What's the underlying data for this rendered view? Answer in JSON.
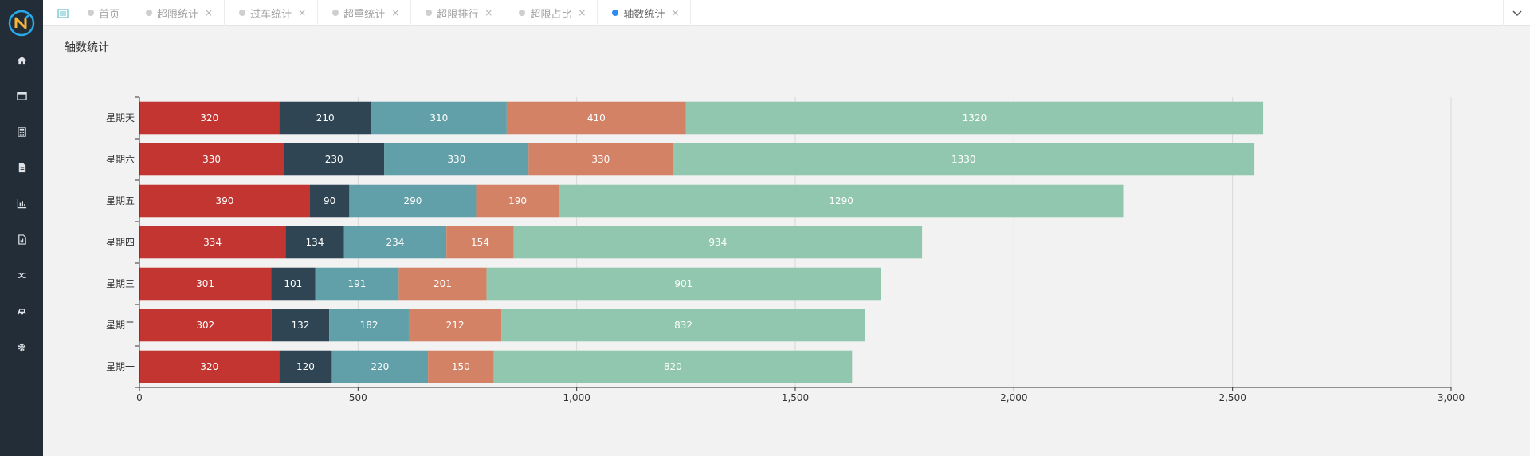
{
  "app": {
    "logo": "N"
  },
  "sidebar": {
    "items": [
      {
        "icon": "home-icon"
      },
      {
        "icon": "window-icon"
      },
      {
        "icon": "calculator-icon"
      },
      {
        "icon": "document-icon"
      },
      {
        "icon": "bar-chart-icon"
      },
      {
        "icon": "file-chart-icon"
      },
      {
        "icon": "shuffle-icon"
      },
      {
        "icon": "car-icon"
      },
      {
        "icon": "gear-icon"
      }
    ]
  },
  "tabs": [
    {
      "label": "首页",
      "closable": false,
      "active": false
    },
    {
      "label": "超限统计",
      "closable": true,
      "active": false
    },
    {
      "label": "过车统计",
      "closable": true,
      "active": false
    },
    {
      "label": "超重统计",
      "closable": true,
      "active": false
    },
    {
      "label": "超限排行",
      "closable": true,
      "active": false
    },
    {
      "label": "超限占比",
      "closable": true,
      "active": false
    },
    {
      "label": "轴数统计",
      "closable": true,
      "active": true
    }
  ],
  "page": {
    "title": "轴数统计"
  },
  "colors": {
    "accent": "#2d8cf0",
    "series": [
      "#c23531",
      "#2f4554",
      "#61a0a8",
      "#d48265",
      "#91c7ae"
    ]
  },
  "chart_data": {
    "type": "bar",
    "orientation": "horizontal",
    "stacked": true,
    "categories": [
      "星期一",
      "星期二",
      "星期三",
      "星期四",
      "星期五",
      "星期六",
      "星期天"
    ],
    "series": [
      {
        "values": [
          320,
          302,
          301,
          334,
          390,
          330,
          320
        ]
      },
      {
        "values": [
          120,
          132,
          101,
          134,
          90,
          230,
          210
        ]
      },
      {
        "values": [
          220,
          182,
          191,
          234,
          290,
          330,
          310
        ]
      },
      {
        "values": [
          150,
          212,
          201,
          154,
          190,
          330,
          410
        ]
      },
      {
        "values": [
          820,
          832,
          901,
          934,
          1290,
          1330,
          1320
        ]
      }
    ],
    "xlim": [
      0,
      3000
    ],
    "xticks": [
      0,
      500,
      1000,
      1500,
      2000,
      2500,
      3000
    ],
    "xtick_labels": [
      "0",
      "500",
      "1,000",
      "1,500",
      "2,000",
      "2,500",
      "3,000"
    ],
    "grid": true,
    "data_labels": true,
    "legend": "none"
  }
}
